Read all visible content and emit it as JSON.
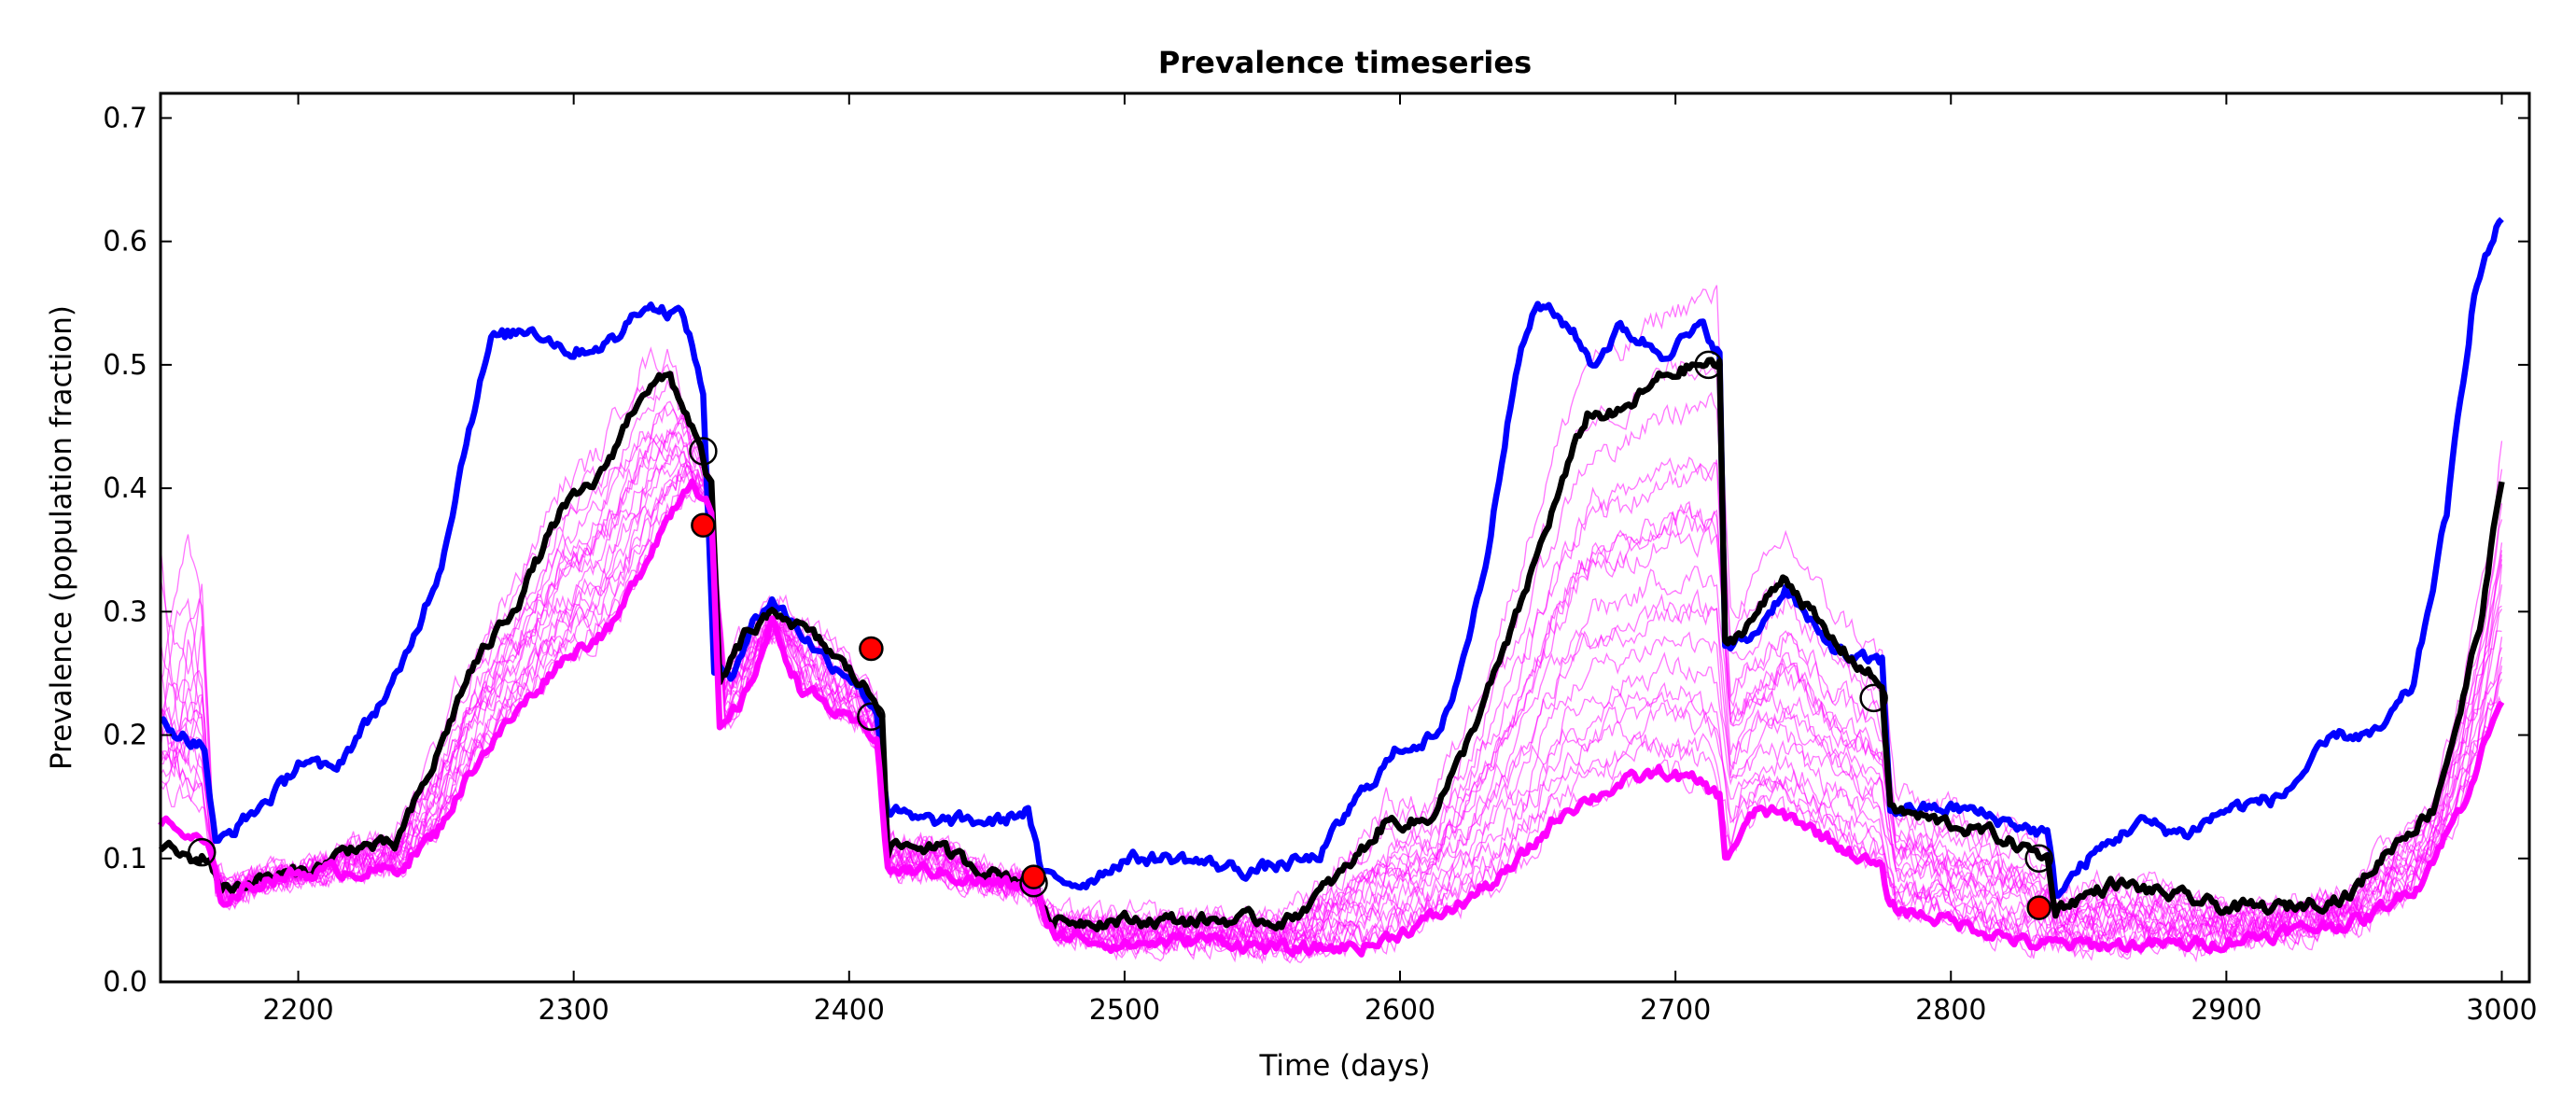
{
  "chart_data": {
    "type": "line",
    "title": "Prevalence timeseries",
    "xlabel": "Time (days)",
    "ylabel": "Prevalence (population fraction)",
    "xlim": [
      2150,
      3010
    ],
    "ylim": [
      0.0,
      0.72
    ],
    "xticks": [
      2200,
      2300,
      2400,
      2500,
      2600,
      2700,
      2800,
      2900,
      3000
    ],
    "yticks": [
      0.0,
      0.1,
      0.2,
      0.3,
      0.4,
      0.5,
      0.6,
      0.7
    ],
    "grid": false,
    "legend": "none",
    "colors": {
      "blue": "#0000ff",
      "black": "#000000",
      "magenta": "#ff00ff",
      "marker_red": "#ff0000"
    },
    "series": [
      {
        "color": "blue",
        "style": "thick",
        "points": [
          [
            2150,
            0.21
          ],
          [
            2158,
            0.2
          ],
          [
            2166,
            0.19
          ],
          [
            2170,
            0.11
          ],
          [
            2180,
            0.13
          ],
          [
            2195,
            0.16
          ],
          [
            2200,
            0.18
          ],
          [
            2212,
            0.17
          ],
          [
            2222,
            0.2
          ],
          [
            2237,
            0.25
          ],
          [
            2252,
            0.34
          ],
          [
            2262,
            0.45
          ],
          [
            2270,
            0.52
          ],
          [
            2285,
            0.53
          ],
          [
            2300,
            0.51
          ],
          [
            2315,
            0.52
          ],
          [
            2325,
            0.55
          ],
          [
            2340,
            0.54
          ],
          [
            2347,
            0.48
          ],
          [
            2351,
            0.25
          ],
          [
            2357,
            0.25
          ],
          [
            2365,
            0.29
          ],
          [
            2372,
            0.31
          ],
          [
            2380,
            0.29
          ],
          [
            2392,
            0.26
          ],
          [
            2400,
            0.25
          ],
          [
            2410,
            0.22
          ],
          [
            2414,
            0.14
          ],
          [
            2425,
            0.13
          ],
          [
            2440,
            0.13
          ],
          [
            2455,
            0.13
          ],
          [
            2465,
            0.14
          ],
          [
            2470,
            0.085
          ],
          [
            2485,
            0.08
          ],
          [
            2500,
            0.1
          ],
          [
            2520,
            0.1
          ],
          [
            2545,
            0.09
          ],
          [
            2570,
            0.1
          ],
          [
            2585,
            0.15
          ],
          [
            2600,
            0.19
          ],
          [
            2615,
            0.2
          ],
          [
            2625,
            0.28
          ],
          [
            2632,
            0.35
          ],
          [
            2642,
            0.5
          ],
          [
            2650,
            0.55
          ],
          [
            2662,
            0.53
          ],
          [
            2670,
            0.5
          ],
          [
            2680,
            0.53
          ],
          [
            2695,
            0.51
          ],
          [
            2710,
            0.53
          ],
          [
            2716,
            0.51
          ],
          [
            2718,
            0.27
          ],
          [
            2728,
            0.28
          ],
          [
            2740,
            0.32
          ],
          [
            2752,
            0.28
          ],
          [
            2765,
            0.26
          ],
          [
            2775,
            0.26
          ],
          [
            2778,
            0.14
          ],
          [
            2790,
            0.14
          ],
          [
            2805,
            0.14
          ],
          [
            2820,
            0.13
          ],
          [
            2835,
            0.12
          ],
          [
            2838,
            0.07
          ],
          [
            2850,
            0.1
          ],
          [
            2868,
            0.13
          ],
          [
            2885,
            0.12
          ],
          [
            2900,
            0.14
          ],
          [
            2920,
            0.15
          ],
          [
            2940,
            0.2
          ],
          [
            2955,
            0.2
          ],
          [
            2968,
            0.24
          ],
          [
            2980,
            0.38
          ],
          [
            2990,
            0.56
          ],
          [
            3000,
            0.62
          ]
        ]
      },
      {
        "color": "black",
        "style": "thick",
        "points": [
          [
            2150,
            0.11
          ],
          [
            2160,
            0.1
          ],
          [
            2168,
            0.1
          ],
          [
            2172,
            0.075
          ],
          [
            2190,
            0.085
          ],
          [
            2205,
            0.09
          ],
          [
            2220,
            0.11
          ],
          [
            2235,
            0.11
          ],
          [
            2248,
            0.17
          ],
          [
            2262,
            0.25
          ],
          [
            2280,
            0.31
          ],
          [
            2295,
            0.38
          ],
          [
            2310,
            0.41
          ],
          [
            2325,
            0.48
          ],
          [
            2335,
            0.49
          ],
          [
            2343,
            0.45
          ],
          [
            2350,
            0.4
          ],
          [
            2353,
            0.24
          ],
          [
            2362,
            0.28
          ],
          [
            2375,
            0.3
          ],
          [
            2392,
            0.27
          ],
          [
            2405,
            0.24
          ],
          [
            2412,
            0.22
          ],
          [
            2414,
            0.11
          ],
          [
            2430,
            0.11
          ],
          [
            2450,
            0.09
          ],
          [
            2468,
            0.08
          ],
          [
            2472,
            0.05
          ],
          [
            2500,
            0.05
          ],
          [
            2535,
            0.05
          ],
          [
            2560,
            0.05
          ],
          [
            2580,
            0.09
          ],
          [
            2595,
            0.13
          ],
          [
            2610,
            0.13
          ],
          [
            2622,
            0.18
          ],
          [
            2640,
            0.28
          ],
          [
            2655,
            0.38
          ],
          [
            2668,
            0.46
          ],
          [
            2680,
            0.46
          ],
          [
            2695,
            0.49
          ],
          [
            2708,
            0.5
          ],
          [
            2716,
            0.5
          ],
          [
            2718,
            0.27
          ],
          [
            2730,
            0.3
          ],
          [
            2740,
            0.33
          ],
          [
            2755,
            0.28
          ],
          [
            2775,
            0.24
          ],
          [
            2778,
            0.14
          ],
          [
            2795,
            0.13
          ],
          [
            2815,
            0.12
          ],
          [
            2835,
            0.1
          ],
          [
            2838,
            0.06
          ],
          [
            2860,
            0.08
          ],
          [
            2880,
            0.07
          ],
          [
            2900,
            0.06
          ],
          [
            2920,
            0.06
          ],
          [
            2945,
            0.07
          ],
          [
            2960,
            0.11
          ],
          [
            2975,
            0.14
          ],
          [
            2985,
            0.22
          ],
          [
            2993,
            0.3
          ],
          [
            3000,
            0.41
          ]
        ]
      },
      {
        "color": "magenta",
        "style": "thick",
        "points": [
          [
            2150,
            0.13
          ],
          [
            2158,
            0.12
          ],
          [
            2167,
            0.11
          ],
          [
            2172,
            0.065
          ],
          [
            2190,
            0.085
          ],
          [
            2210,
            0.09
          ],
          [
            2235,
            0.09
          ],
          [
            2250,
            0.12
          ],
          [
            2265,
            0.18
          ],
          [
            2280,
            0.22
          ],
          [
            2295,
            0.26
          ],
          [
            2315,
            0.29
          ],
          [
            2330,
            0.36
          ],
          [
            2343,
            0.41
          ],
          [
            2350,
            0.38
          ],
          [
            2353,
            0.2
          ],
          [
            2362,
            0.23
          ],
          [
            2372,
            0.29
          ],
          [
            2382,
            0.24
          ],
          [
            2400,
            0.21
          ],
          [
            2410,
            0.2
          ],
          [
            2414,
            0.09
          ],
          [
            2430,
            0.09
          ],
          [
            2450,
            0.08
          ],
          [
            2468,
            0.075
          ],
          [
            2472,
            0.04
          ],
          [
            2500,
            0.03
          ],
          [
            2530,
            0.035
          ],
          [
            2560,
            0.025
          ],
          [
            2590,
            0.03
          ],
          [
            2620,
            0.06
          ],
          [
            2640,
            0.09
          ],
          [
            2660,
            0.14
          ],
          [
            2680,
            0.16
          ],
          [
            2695,
            0.17
          ],
          [
            2710,
            0.16
          ],
          [
            2716,
            0.15
          ],
          [
            2718,
            0.1
          ],
          [
            2730,
            0.14
          ],
          [
            2745,
            0.13
          ],
          [
            2760,
            0.11
          ],
          [
            2775,
            0.09
          ],
          [
            2778,
            0.06
          ],
          [
            2800,
            0.05
          ],
          [
            2830,
            0.03
          ],
          [
            2860,
            0.03
          ],
          [
            2890,
            0.03
          ],
          [
            2920,
            0.04
          ],
          [
            2950,
            0.05
          ],
          [
            2970,
            0.08
          ],
          [
            2985,
            0.14
          ],
          [
            3000,
            0.23
          ]
        ]
      }
    ],
    "ensemble": {
      "color": "magenta",
      "style": "thin",
      "count": 20
    },
    "markers": [
      {
        "kind": "open_circle",
        "x": 2165,
        "y": 0.105
      },
      {
        "kind": "open_circle",
        "x": 2347,
        "y": 0.43
      },
      {
        "kind": "open_circle",
        "x": 2408,
        "y": 0.215
      },
      {
        "kind": "open_circle",
        "x": 2467,
        "y": 0.08
      },
      {
        "kind": "open_circle",
        "x": 2712,
        "y": 0.5
      },
      {
        "kind": "open_circle",
        "x": 2772,
        "y": 0.23
      },
      {
        "kind": "open_circle",
        "x": 2832,
        "y": 0.1
      },
      {
        "kind": "red_dot",
        "x": 2347,
        "y": 0.37
      },
      {
        "kind": "red_dot",
        "x": 2408,
        "y": 0.27
      },
      {
        "kind": "red_dot",
        "x": 2467,
        "y": 0.085
      },
      {
        "kind": "red_dot",
        "x": 2832,
        "y": 0.06
      }
    ]
  }
}
